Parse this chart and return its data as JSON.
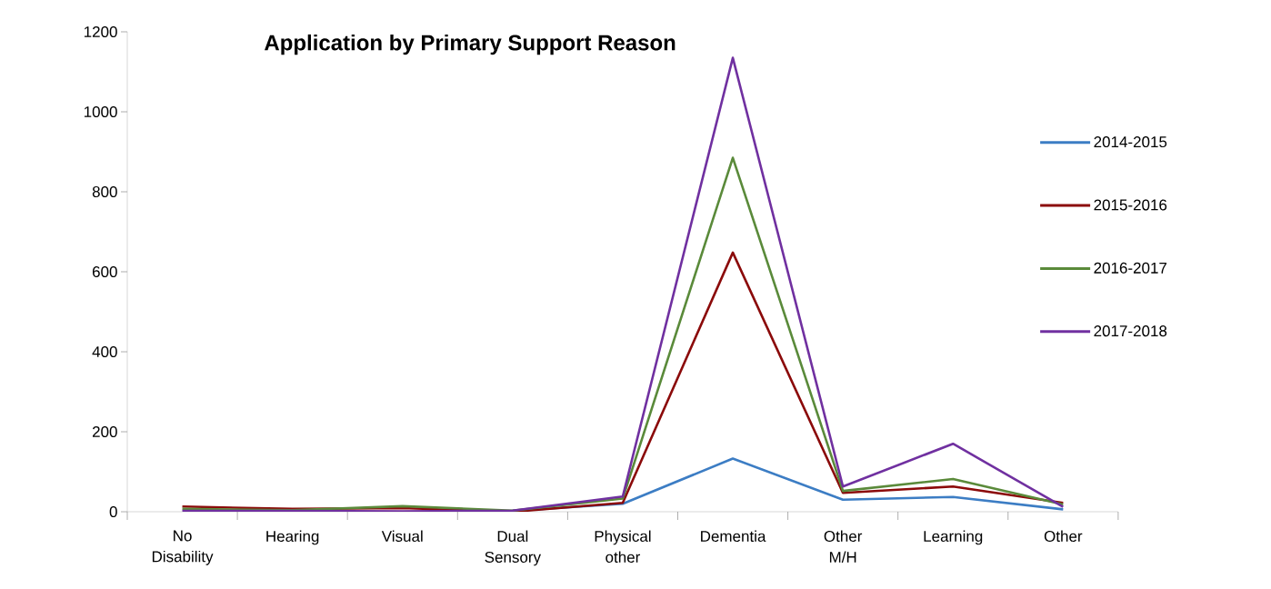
{
  "chart_data": {
    "type": "line",
    "title": "Application by Primary Support Reason",
    "categories": [
      "No Disability",
      "Hearing",
      "Visual",
      "Dual Sensory",
      "Physical other",
      "Dementia",
      "Other M/H",
      "Learning",
      "Other"
    ],
    "series": [
      {
        "name": "2014-2015",
        "color": "#3c7dc4",
        "values": [
          null,
          null,
          null,
          2,
          20,
          133,
          30,
          37,
          6
        ]
      },
      {
        "name": "2015-2016",
        "color": "#8b0a0a",
        "values": [
          13,
          7,
          9,
          0,
          22,
          648,
          47,
          63,
          22
        ]
      },
      {
        "name": "2016-2017",
        "color": "#5a8a3a",
        "values": [
          7,
          4,
          14,
          3,
          33,
          885,
          52,
          82,
          18
        ]
      },
      {
        "name": "2017-2018",
        "color": "#7030a0",
        "values": [
          2,
          2,
          1,
          3,
          38,
          1135,
          63,
          170,
          12
        ]
      }
    ],
    "ylim": [
      0,
      1200
    ],
    "yticks": [
      0,
      200,
      400,
      600,
      800,
      1000,
      1200
    ],
    "legend": "right",
    "marker": "none",
    "line_style": "solid",
    "grid": false
  }
}
